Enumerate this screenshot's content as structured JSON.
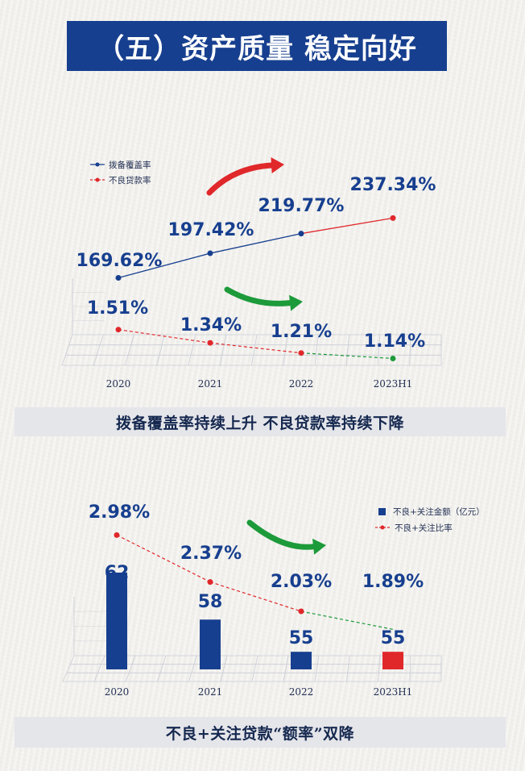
{
  "title": "（五）资产质量 稳定向好",
  "caption1": "拨备覆盖率持续上升  不良贷款率持续下降",
  "caption2": "不良+关注贷款“额率”双降",
  "colors": {
    "navy": "#173f8f",
    "red": "#e0282b",
    "green": "#1d9a3a",
    "banner": "#173f8f",
    "caption_bg": "#e5e6ea"
  },
  "icons": [
    "trend-up-arrow-icon",
    "trend-down-arrow-icon"
  ],
  "chart_data": [
    {
      "type": "line",
      "categories": [
        "2020",
        "2021",
        "2022",
        "2023H1"
      ],
      "series": [
        {
          "name": "拨备覆盖率",
          "values": [
            169.62,
            197.42,
            219.77,
            237.34
          ],
          "labels": [
            "169.62%",
            "197.42%",
            "219.77%",
            "237.34%"
          ],
          "color": "#173f8f"
        },
        {
          "name": "不良贷款率",
          "values": [
            1.51,
            1.34,
            1.21,
            1.14
          ],
          "labels": [
            "1.51%",
            "1.34%",
            "1.21%",
            "1.14%"
          ],
          "color": "#e0282b"
        }
      ],
      "legend": "top-left",
      "trend_arrows": [
        "up",
        "down"
      ]
    },
    {
      "type": "bar",
      "categories": [
        "2020",
        "2021",
        "2022",
        "2023H1"
      ],
      "series": [
        {
          "name": "不良+关注金额（亿元）",
          "values": [
            62,
            58,
            55,
            55
          ],
          "labels": [
            "62",
            "58",
            "55",
            "55"
          ],
          "color": "#173f8f"
        },
        {
          "name": "不良+关注比率",
          "type": "line",
          "values": [
            2.98,
            2.37,
            2.03,
            1.89
          ],
          "labels": [
            "2.98%",
            "2.37%",
            "2.03%",
            "1.89%"
          ],
          "color": "#e0282b"
        }
      ],
      "legend": "top-right",
      "trend_arrows": [
        "down"
      ]
    }
  ]
}
